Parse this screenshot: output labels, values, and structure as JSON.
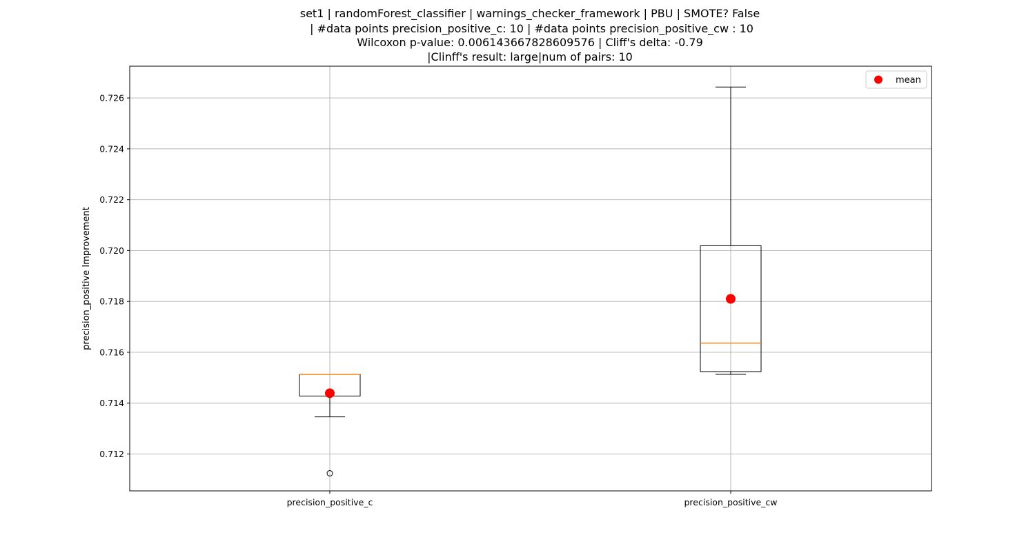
{
  "chart_data": {
    "type": "box",
    "title_lines": [
      "set1 | randomForest_classifier | warnings_checker_framework | PBU | SMOTE? False",
      " | #data points precision_positive_c: 10 | #data points precision_positive_cw : 10",
      "Wilcoxon p-value: 0.006143667828609576 | Cliff's delta: -0.79",
      "|Clinff's result: large|num of pairs: 10"
    ],
    "xlabel": "",
    "ylabel": "precision_positive Improvement",
    "ylim": [
      0.71055,
      0.72725
    ],
    "yticks": [
      0.712,
      0.714,
      0.716,
      0.718,
      0.72,
      0.722,
      0.724,
      0.726
    ],
    "ytick_labels": [
      "0.712",
      "0.714",
      "0.716",
      "0.718",
      "0.720",
      "0.722",
      "0.724",
      "0.726"
    ],
    "grid": true,
    "legend": {
      "position": "top-right",
      "entries": [
        {
          "label": "mean",
          "color": "#ff0000"
        }
      ]
    },
    "colors": {
      "box": "#000000",
      "median": "#ff7f0e",
      "mean": "#ff0000",
      "grid": "#b0b0b0"
    },
    "categories": [
      "precision_positive_c",
      "precision_positive_cw"
    ],
    "boxes": [
      {
        "name": "precision_positive_c",
        "whisker_low": 0.71346,
        "q1": 0.71428,
        "median": 0.71513,
        "q3": 0.71513,
        "whisker_high": 0.71513,
        "mean": 0.71439,
        "outliers": [
          0.71124
        ]
      },
      {
        "name": "precision_positive_cw",
        "whisker_low": 0.71513,
        "q1": 0.71524,
        "median": 0.71636,
        "q3": 0.72019,
        "whisker_high": 0.72643,
        "mean": 0.7181,
        "outliers": []
      }
    ]
  }
}
